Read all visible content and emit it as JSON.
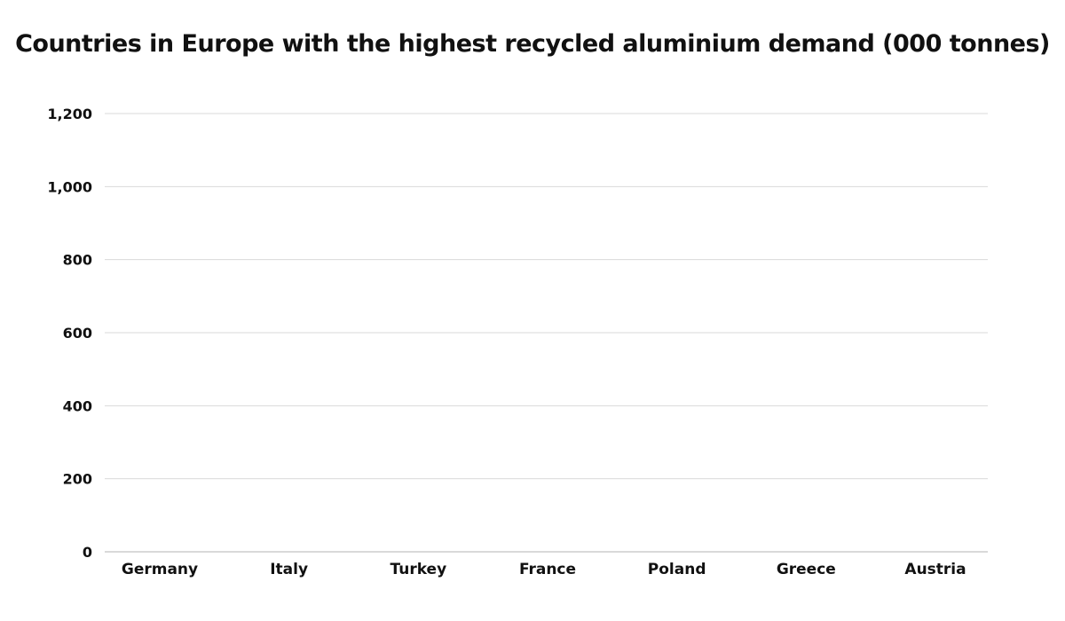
{
  "chart_data": {
    "type": "bar",
    "title": "Countries in Europe with the highest recycled aluminium demand (000 tonnes)",
    "categories": [
      "Germany",
      "Italy",
      "Turkey",
      "France",
      "Poland",
      "Greece",
      "Austria"
    ],
    "values": [
      null,
      null,
      null,
      null,
      null,
      null,
      null
    ],
    "xlabel": "",
    "ylabel": "",
    "ylim": [
      0,
      1200
    ],
    "yticks": [
      0,
      200,
      400,
      600,
      800,
      1000,
      1200
    ],
    "ytick_labels": [
      "0",
      "200",
      "400",
      "600",
      "800",
      "1,000",
      "1,200"
    ],
    "grid": true,
    "colors": {
      "grid": "#d9d9d9",
      "baseline": "#b3b3b3",
      "text": "#111111"
    }
  }
}
